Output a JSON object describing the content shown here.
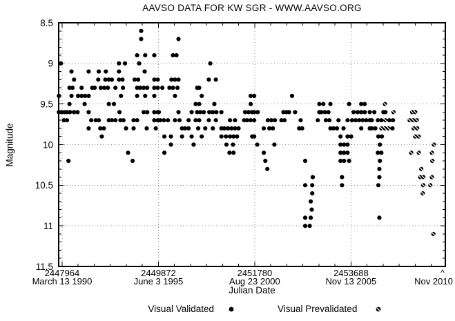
{
  "title": "AAVSO DATA FOR KW SGR - WWW.AAVSO.ORG",
  "colors": {
    "foreground": "#000000",
    "background": "#ffffff",
    "grid": "#8a8a8a"
  },
  "annotations": {
    "caret": "^"
  },
  "chart_data": {
    "type": "scatter",
    "title": "AAVSO DATA FOR KW SGR - WWW.AAVSO.ORG",
    "xlabel": "Julian Date",
    "ylabel": "Magnitude",
    "xlim": [
      2447896,
      2455557
    ],
    "ylim": [
      8.5,
      11.5
    ],
    "y_axis_inverted": true,
    "grid": "dotted-at-major-ticks",
    "x_tick_start": 2447964,
    "x_minor_step": 318,
    "x_major_step": 1908,
    "x_major_ticks": [
      {
        "jd": 2447964,
        "jd_label": "2447964",
        "date_label": "March 13 1990"
      },
      {
        "jd": 2449872,
        "jd_label": "2449872",
        "date_label": "June 3 1995"
      },
      {
        "jd": 2451780,
        "jd_label": "2451780",
        "date_label": "Aug 23 2000"
      },
      {
        "jd": 2453688,
        "jd_label": "2453688",
        "date_label": "Nov 13 2005"
      }
    ],
    "x_end_label": "Nov 2010",
    "y_ticks": [
      {
        "value": 8.5,
        "label": "8.5"
      },
      {
        "value": 9.0,
        "label": "9"
      },
      {
        "value": 9.5,
        "label": "9.5"
      },
      {
        "value": 10.0,
        "label": "10"
      },
      {
        "value": 10.5,
        "label": "10.5"
      },
      {
        "value": 11.0,
        "label": "11"
      },
      {
        "value": 11.5,
        "label": "11.5"
      }
    ],
    "y_minor_step": 0.1,
    "legend": {
      "items": [
        {
          "label": "Visual Validated",
          "marker": "filled-circle"
        },
        {
          "label": "Visual Prevalidated",
          "marker": "slashed-circle"
        }
      ]
    },
    "series": [
      {
        "name": "Visual Validated",
        "marker": "filled-circle",
        "points_by_mag": {
          "8.6": [
            2449530
          ],
          "8.7": [
            2449530,
            2450270
          ],
          "8.9": [
            2449450,
            2449610,
            2449790,
            2450160,
            2450230
          ],
          "9.0": [
            2447940,
            2449090,
            2449210,
            2449490,
            2450900
          ],
          "9.1": [
            2448150,
            2448490,
            2448690,
            2448830,
            2449090,
            2449600
          ],
          "9.2": [
            2448200,
            2448680,
            2448820,
            2448890,
            2448950,
            2449090,
            2449160,
            2449400,
            2449470,
            2449790,
            2449860,
            2450130,
            2450200,
            2450270,
            2450870,
            2451010
          ],
          "9.3": [
            2448110,
            2448170,
            2448350,
            2448560,
            2448610,
            2448730,
            2448800,
            2448870,
            2449020,
            2449170,
            2449450,
            2449510,
            2449580,
            2449650,
            2449790,
            2449860,
            2449950,
            2450090,
            2450160,
            2450250,
            2450640,
            2450680
          ],
          "9.4": [
            2447900,
            2448150,
            2448280,
            2448350,
            2448420,
            2448490,
            2449130,
            2449450,
            2449610,
            2449790,
            2450200,
            2450730,
            2451700,
            2451770,
            2452520
          ],
          "9.5": [
            2448110,
            2448410,
            2448890,
            2448990,
            2450610,
            2450680,
            2450980,
            2451700,
            2453060,
            2453140,
            2453280,
            2453650,
            2453890,
            2453960
          ],
          "9.6": [
            2447900,
            2447950,
            2448010,
            2448060,
            2448120,
            2448200,
            2448270,
            2448490,
            2449100,
            2449580,
            2449650,
            2449790,
            2449860,
            2449880,
            2450270,
            2450530,
            2450640,
            2450700,
            2450770,
            2450880,
            2450950,
            2451020,
            2451120,
            2451590,
            2451660,
            2451730,
            2451770,
            2451840,
            2452350,
            2452410,
            2452460,
            2452580,
            2453060,
            2453100,
            2453170,
            2453240,
            2453740,
            2453820,
            2453890,
            2453960,
            2454060,
            2454150,
            2454330,
            2454370
          ],
          "9.7": [
            2448000,
            2448060,
            2448540,
            2448630,
            2448690,
            2448890,
            2448950,
            2449020,
            2449120,
            2449180,
            2449380,
            2449450,
            2449790,
            2449860,
            2449910,
            2449980,
            2450060,
            2450200,
            2450290,
            2450470,
            2450610,
            2450680,
            2450870,
            2451010,
            2451290,
            2451390,
            2451570,
            2451630,
            2451700,
            2451770,
            2452040,
            2452110,
            2452180,
            2452310,
            2452370,
            2452690,
            2453030,
            2453190,
            2453260,
            2453440,
            2453620,
            2453710,
            2453780,
            2453850,
            2453920,
            2453990,
            2454060,
            2454100,
            2454220,
            2454290,
            2454450,
            2454520
          ],
          "9.8": [
            2448490,
            2448720,
            2448790,
            2449230,
            2449380,
            2449640,
            2449820,
            2450340,
            2450400,
            2450470,
            2450660,
            2450800,
            2450950,
            2451120,
            2451180,
            2451250,
            2451320,
            2451390,
            2451460,
            2451960,
            2452070,
            2452140,
            2452660,
            2452720,
            2453280,
            2453340,
            2453410,
            2453540,
            2453890,
            2454060,
            2454100,
            2454170,
            2454510
          ],
          "9.9": [
            2448750,
            2449990,
            2450120,
            2450340,
            2450530,
            2450730,
            2451120,
            2451210,
            2451290,
            2451360,
            2451430,
            2451730,
            2451770,
            2453480,
            2453620,
            2453690,
            2454230,
            2454300
          ],
          "10.0": [
            2450120,
            2450570,
            2451220,
            2451350,
            2451830,
            2452170,
            2453480,
            2453550,
            2453620,
            2454260
          ],
          "10.1": [
            2449270,
            2449990,
            2451280,
            2451360,
            2451960,
            2453480,
            2453550,
            2453620,
            2454220,
            2454290
          ],
          "10.2": [
            2448090,
            2449360,
            2451990,
            2452780,
            2453480,
            2453550,
            2453650,
            2454260
          ],
          "10.3": [
            2452030,
            2454250
          ],
          "10.4": [
            2452930,
            2453510,
            2454250
          ],
          "10.5": [
            2452780,
            2452920,
            2453510,
            2454230
          ],
          "10.6": [
            2452920
          ],
          "10.7": [
            2452890
          ],
          "10.8": [
            2452910
          ],
          "10.9": [
            2452780,
            2452890,
            2454250
          ],
          "11.0": [
            2452780,
            2452870
          ]
        }
      },
      {
        "name": "Visual Prevalidated",
        "marker": "slashed-circle",
        "points_by_mag": {
          "9.5": [
            2454360
          ],
          "9.6": [
            2454530,
            2454900,
            2454960
          ],
          "9.7": [
            2454370,
            2454850,
            2454920,
            2454990
          ],
          "9.8": [
            2454290,
            2454360,
            2454430,
            2454930,
            2455000
          ],
          "9.9": [
            2454960,
            2455030
          ],
          "10.0": [
            2455330
          ],
          "10.1": [
            2454880,
            2455030,
            2455290
          ],
          "10.2": [
            2455300
          ],
          "10.3": [
            2455080
          ],
          "10.4": [
            2455060,
            2455120,
            2455290
          ],
          "10.5": [
            2455120,
            2455260
          ],
          "10.6": [
            2455110
          ],
          "11.1": [
            2455320
          ]
        }
      }
    ]
  }
}
